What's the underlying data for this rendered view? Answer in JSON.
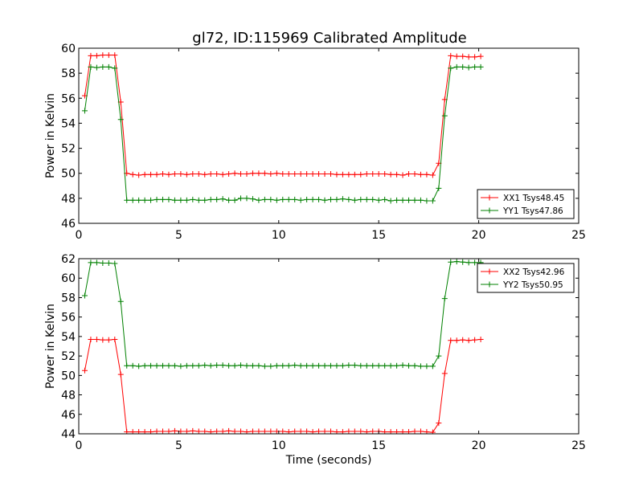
{
  "title": "gl72, ID:115969 Calibrated Amplitude",
  "colors": {
    "red": "#ff0000",
    "green": "#008000"
  },
  "chart_data": [
    {
      "type": "line",
      "xlabel": "",
      "ylabel": "Power in Kelvin",
      "xlim": [
        0,
        25
      ],
      "ylim": [
        46,
        60
      ],
      "xticks": [
        0,
        5,
        10,
        15,
        20,
        25
      ],
      "yticks": [
        46,
        48,
        50,
        52,
        54,
        56,
        58,
        60
      ],
      "legend": "lower-right",
      "grid": false,
      "x": [
        0.3,
        0.6,
        0.9,
        1.2,
        1.5,
        1.8,
        2.1,
        2.4,
        2.7,
        3.0,
        3.3,
        3.6,
        3.9,
        4.2,
        4.5,
        4.8,
        5.1,
        5.4,
        5.7,
        6.0,
        6.3,
        6.6,
        6.9,
        7.2,
        7.5,
        7.8,
        8.1,
        8.4,
        8.7,
        9.0,
        9.3,
        9.6,
        9.9,
        10.2,
        10.5,
        10.8,
        11.1,
        11.4,
        11.7,
        12.0,
        12.3,
        12.6,
        12.9,
        13.2,
        13.5,
        13.8,
        14.1,
        14.4,
        14.7,
        15.0,
        15.3,
        15.6,
        15.9,
        16.2,
        16.5,
        16.8,
        17.1,
        17.4,
        17.7,
        18.0,
        18.3,
        18.6,
        18.9,
        19.2,
        19.5,
        19.8,
        20.1
      ],
      "series": [
        {
          "name": "XX1 Tsys48.45",
          "color": "#ff0000",
          "values": [
            56.2,
            59.4,
            59.4,
            59.45,
            59.45,
            59.45,
            55.7,
            50.0,
            49.9,
            49.85,
            49.9,
            49.9,
            49.9,
            49.95,
            49.9,
            49.95,
            49.95,
            49.9,
            49.95,
            49.95,
            49.9,
            49.95,
            49.95,
            49.9,
            49.95,
            50.0,
            49.95,
            49.95,
            50.0,
            50.0,
            50.0,
            49.95,
            50.0,
            49.95,
            49.95,
            49.95,
            49.95,
            49.95,
            49.95,
            49.95,
            49.95,
            49.95,
            49.9,
            49.9,
            49.9,
            49.9,
            49.9,
            49.95,
            49.95,
            49.95,
            49.95,
            49.9,
            49.9,
            49.85,
            49.95,
            49.95,
            49.9,
            49.9,
            49.85,
            50.8,
            55.9,
            59.4,
            59.35,
            59.35,
            59.3,
            59.3,
            59.35
          ]
        },
        {
          "name": "YY1 Tsys47.86",
          "color": "#008000",
          "values": [
            55.0,
            58.5,
            58.45,
            58.5,
            58.5,
            58.4,
            54.3,
            47.85,
            47.85,
            47.85,
            47.85,
            47.85,
            47.9,
            47.9,
            47.9,
            47.85,
            47.85,
            47.85,
            47.9,
            47.85,
            47.85,
            47.9,
            47.9,
            47.95,
            47.85,
            47.85,
            48.0,
            48.0,
            47.95,
            47.85,
            47.9,
            47.9,
            47.85,
            47.9,
            47.9,
            47.9,
            47.85,
            47.9,
            47.9,
            47.9,
            47.85,
            47.9,
            47.9,
            47.95,
            47.9,
            47.85,
            47.9,
            47.9,
            47.9,
            47.85,
            47.9,
            47.8,
            47.85,
            47.85,
            47.85,
            47.85,
            47.85,
            47.8,
            47.8,
            48.8,
            54.6,
            58.4,
            58.5,
            58.5,
            58.45,
            58.5,
            58.5
          ]
        }
      ]
    },
    {
      "type": "line",
      "xlabel": "Time (seconds)",
      "ylabel": "Power in Kelvin",
      "xlim": [
        0,
        25
      ],
      "ylim": [
        44,
        62
      ],
      "xticks": [
        0,
        5,
        10,
        15,
        20,
        25
      ],
      "yticks": [
        44,
        46,
        48,
        50,
        52,
        54,
        56,
        58,
        60,
        62
      ],
      "legend": "upper-right",
      "grid": false,
      "x": [
        0.3,
        0.6,
        0.9,
        1.2,
        1.5,
        1.8,
        2.1,
        2.4,
        2.7,
        3.0,
        3.3,
        3.6,
        3.9,
        4.2,
        4.5,
        4.8,
        5.1,
        5.4,
        5.7,
        6.0,
        6.3,
        6.6,
        6.9,
        7.2,
        7.5,
        7.8,
        8.1,
        8.4,
        8.7,
        9.0,
        9.3,
        9.6,
        9.9,
        10.2,
        10.5,
        10.8,
        11.1,
        11.4,
        11.7,
        12.0,
        12.3,
        12.6,
        12.9,
        13.2,
        13.5,
        13.8,
        14.1,
        14.4,
        14.7,
        15.0,
        15.3,
        15.6,
        15.9,
        16.2,
        16.5,
        16.8,
        17.1,
        17.4,
        17.7,
        18.0,
        18.3,
        18.6,
        18.9,
        19.2,
        19.5,
        19.8,
        20.1
      ],
      "series": [
        {
          "name": "XX2 Tsys42.96",
          "color": "#ff0000",
          "values": [
            50.5,
            53.7,
            53.7,
            53.65,
            53.65,
            53.7,
            50.1,
            44.2,
            44.2,
            44.2,
            44.2,
            44.2,
            44.25,
            44.25,
            44.25,
            44.3,
            44.25,
            44.25,
            44.3,
            44.25,
            44.25,
            44.2,
            44.25,
            44.25,
            44.3,
            44.25,
            44.25,
            44.2,
            44.25,
            44.25,
            44.25,
            44.25,
            44.25,
            44.25,
            44.2,
            44.25,
            44.25,
            44.25,
            44.2,
            44.25,
            44.25,
            44.25,
            44.2,
            44.2,
            44.25,
            44.25,
            44.25,
            44.2,
            44.25,
            44.25,
            44.2,
            44.2,
            44.2,
            44.2,
            44.2,
            44.25,
            44.25,
            44.2,
            44.15,
            45.1,
            50.2,
            53.6,
            53.6,
            53.65,
            53.6,
            53.65,
            53.7
          ]
        },
        {
          "name": "YY2 Tsys50.95",
          "color": "#008000",
          "values": [
            58.2,
            61.6,
            61.6,
            61.55,
            61.55,
            61.5,
            57.6,
            51.0,
            51.0,
            50.95,
            51.0,
            51.0,
            51.0,
            51.0,
            51.0,
            51.0,
            50.95,
            51.0,
            51.0,
            51.0,
            51.05,
            51.0,
            51.05,
            51.05,
            51.0,
            51.0,
            51.05,
            51.0,
            51.0,
            51.0,
            50.95,
            50.95,
            51.0,
            51.0,
            51.0,
            51.05,
            51.0,
            51.0,
            51.0,
            51.0,
            51.0,
            51.0,
            51.0,
            51.0,
            51.05,
            51.05,
            51.0,
            51.0,
            51.0,
            51.0,
            51.0,
            51.0,
            51.0,
            51.05,
            51.0,
            51.0,
            50.95,
            50.95,
            50.95,
            52.0,
            57.9,
            61.65,
            61.7,
            61.65,
            61.6,
            61.6,
            61.6
          ]
        }
      ]
    }
  ]
}
